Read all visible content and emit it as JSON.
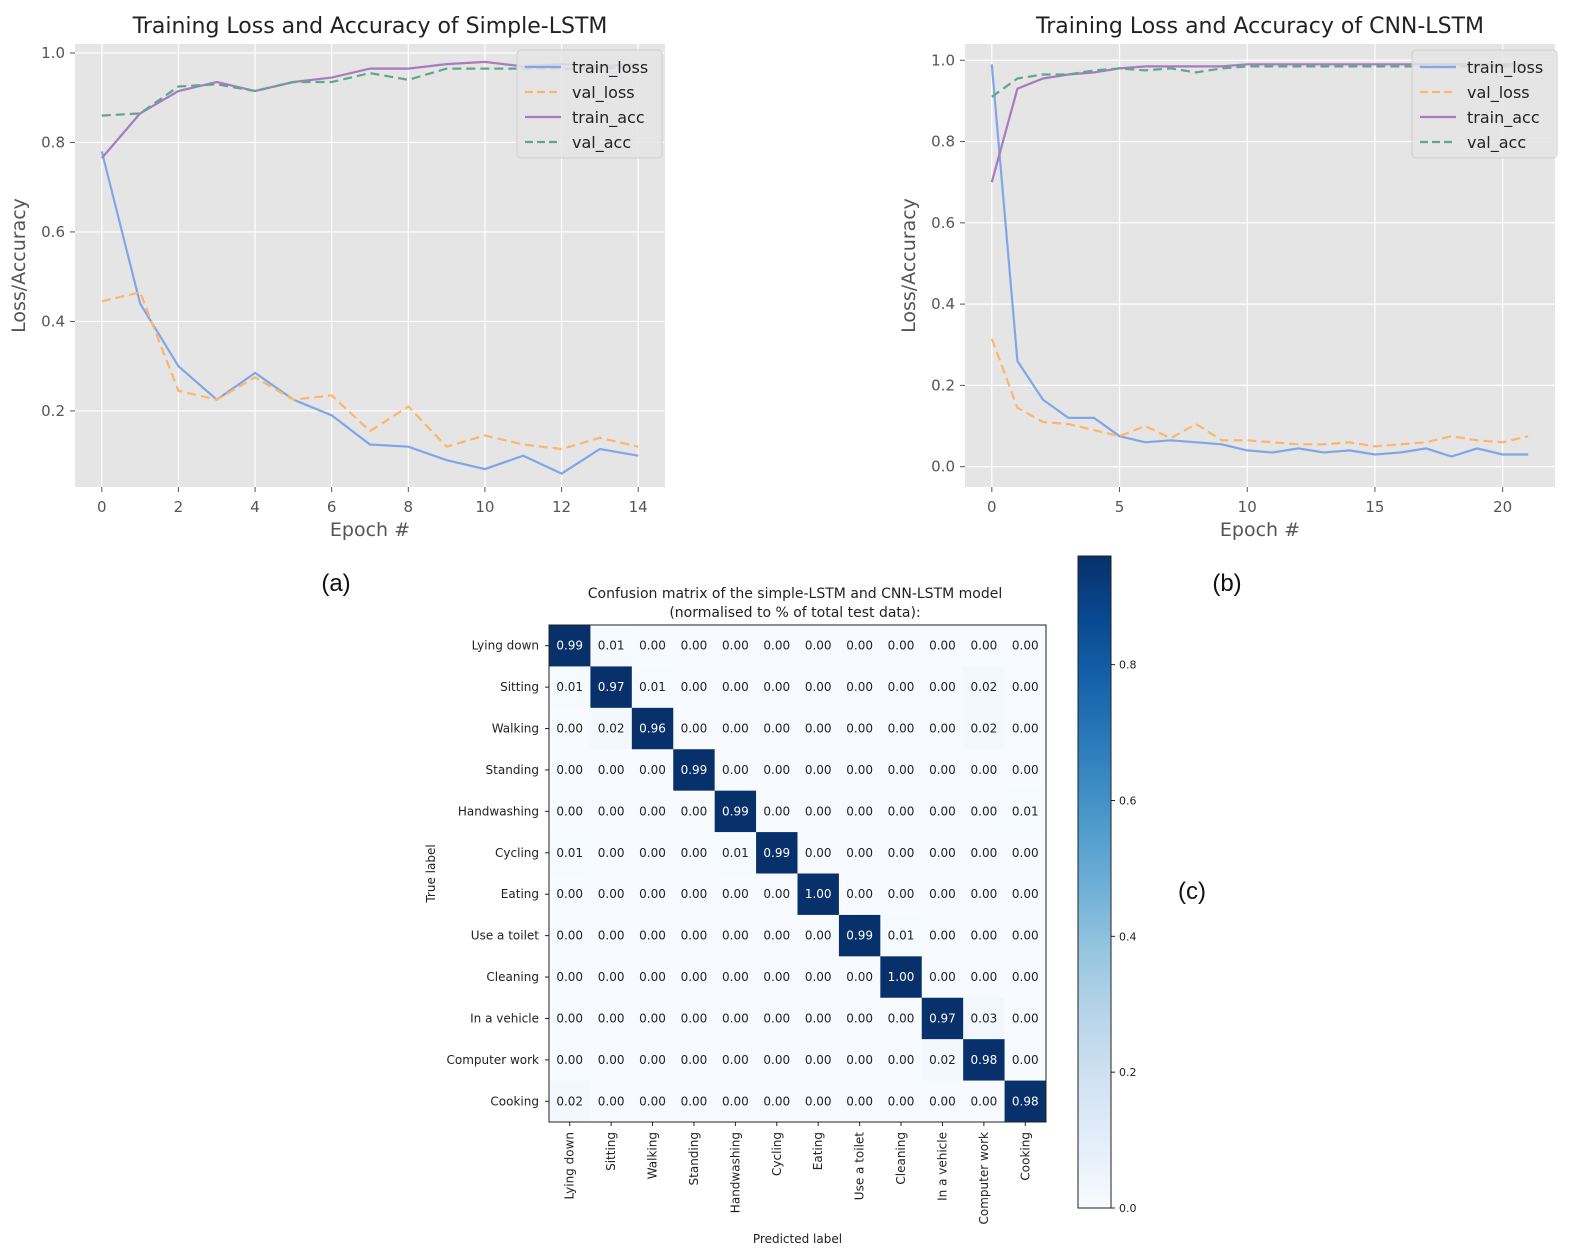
{
  "chart_data": [
    {
      "type": "line",
      "title": "Training Loss and Accuracy of Simple-LSTM",
      "xlabel": "Epoch #",
      "ylabel": "Loss/Accuracy",
      "panel_label": "(a)",
      "xlim": [
        -0.7,
        14.7
      ],
      "ylim": [
        0.03,
        1.02
      ],
      "xticks": [
        0,
        2,
        4,
        6,
        8,
        10,
        12,
        14
      ],
      "yticks": [
        0.2,
        0.4,
        0.6,
        0.8,
        1.0
      ],
      "ytick_labels": [
        "0.2",
        "0.4",
        "0.6",
        "0.8",
        "1.0"
      ],
      "legend_position": "top-right",
      "x": [
        0,
        1,
        2,
        3,
        4,
        5,
        6,
        7,
        8,
        9,
        10,
        11,
        12,
        13,
        14
      ],
      "series": [
        {
          "name": "train_loss",
          "style": "solid",
          "color": "#7fa6e8",
          "values": [
            0.78,
            0.44,
            0.3,
            0.225,
            0.285,
            0.225,
            0.19,
            0.125,
            0.12,
            0.09,
            0.07,
            0.1,
            0.06,
            0.115,
            0.1
          ]
        },
        {
          "name": "val_loss",
          "style": "dashed",
          "color": "#fdb56b",
          "values": [
            0.445,
            0.465,
            0.245,
            0.225,
            0.275,
            0.225,
            0.235,
            0.155,
            0.21,
            0.12,
            0.145,
            0.125,
            0.115,
            0.14,
            0.12
          ]
        },
        {
          "name": "train_acc",
          "style": "solid",
          "color": "#a77bbf",
          "values": [
            0.765,
            0.865,
            0.915,
            0.935,
            0.915,
            0.935,
            0.945,
            0.965,
            0.965,
            0.975,
            0.98,
            0.97,
            0.975,
            0.97,
            0.975
          ]
        },
        {
          "name": "val_acc",
          "style": "dashed",
          "color": "#5fa68c",
          "values": [
            0.86,
            0.865,
            0.925,
            0.93,
            0.915,
            0.935,
            0.935,
            0.955,
            0.94,
            0.965,
            0.965,
            0.965,
            0.965,
            0.965,
            0.97
          ]
        }
      ]
    },
    {
      "type": "line",
      "title": "Training Loss and Accuracy of CNN-LSTM",
      "xlabel": "Epoch #",
      "ylabel": "Loss/Accuracy",
      "panel_label": "(b)",
      "xlim": [
        -1.05,
        22.05
      ],
      "ylim": [
        -0.05,
        1.04
      ],
      "xticks": [
        0,
        5,
        10,
        15,
        20
      ],
      "yticks": [
        0.0,
        0.2,
        0.4,
        0.6,
        0.8,
        1.0
      ],
      "ytick_labels": [
        "0.0",
        "0.2",
        "0.4",
        "0.6",
        "0.8",
        "1.0"
      ],
      "legend_position": "top-right",
      "x": [
        0,
        1,
        2,
        3,
        4,
        5,
        6,
        7,
        8,
        9,
        10,
        11,
        12,
        13,
        14,
        15,
        16,
        17,
        18,
        19,
        20,
        21
      ],
      "series": [
        {
          "name": "train_loss",
          "style": "solid",
          "color": "#7fa6e8",
          "values": [
            0.99,
            0.26,
            0.165,
            0.12,
            0.12,
            0.075,
            0.06,
            0.065,
            0.06,
            0.055,
            0.04,
            0.035,
            0.045,
            0.035,
            0.04,
            0.03,
            0.035,
            0.045,
            0.025,
            0.045,
            0.03,
            0.03
          ]
        },
        {
          "name": "val_loss",
          "style": "dashed",
          "color": "#fdb56b",
          "values": [
            0.315,
            0.145,
            0.11,
            0.105,
            0.09,
            0.075,
            0.1,
            0.07,
            0.105,
            0.065,
            0.065,
            0.06,
            0.055,
            0.055,
            0.06,
            0.05,
            0.055,
            0.06,
            0.075,
            0.065,
            0.06,
            0.075
          ]
        },
        {
          "name": "train_acc",
          "style": "solid",
          "color": "#a77bbf",
          "values": [
            0.7,
            0.93,
            0.955,
            0.965,
            0.97,
            0.98,
            0.985,
            0.985,
            0.985,
            0.985,
            0.99,
            0.99,
            0.99,
            0.99,
            0.99,
            0.99,
            0.99,
            0.99,
            0.99,
            0.99,
            0.99,
            0.99
          ]
        },
        {
          "name": "val_acc",
          "style": "dashed",
          "color": "#5fa68c",
          "values": [
            0.91,
            0.955,
            0.965,
            0.965,
            0.975,
            0.98,
            0.975,
            0.98,
            0.97,
            0.98,
            0.985,
            0.985,
            0.985,
            0.985,
            0.985,
            0.985,
            0.985,
            0.985,
            0.985,
            0.985,
            0.985,
            0.985
          ]
        }
      ]
    },
    {
      "type": "heatmap",
      "title": "Confusion matrix of the simple-LSTM and CNN-LSTM model",
      "subtitle": "(normalised to % of total test data):",
      "xlabel": "Predicted label",
      "ylabel": "True label",
      "panel_label": "(c)",
      "labels": [
        "Lying down",
        "Sitting",
        "Walking",
        "Standing",
        "Handwashing",
        "Cycling",
        "Eating",
        "Use a toilet",
        "Cleaning",
        "In a vehicle",
        "Computer work",
        "Cooking"
      ],
      "matrix": [
        [
          "0.99",
          "0.01",
          "0.00",
          "0.00",
          "0.00",
          "0.00",
          "0.00",
          "0.00",
          "0.00",
          "0.00",
          "0.00",
          "0.00"
        ],
        [
          "0.01",
          "0.97",
          "0.01",
          "0.00",
          "0.00",
          "0.00",
          "0.00",
          "0.00",
          "0.00",
          "0.00",
          "0.02",
          "0.00"
        ],
        [
          "0.00",
          "0.02",
          "0.96",
          "0.00",
          "0.00",
          "0.00",
          "0.00",
          "0.00",
          "0.00",
          "0.00",
          "0.02",
          "0.00"
        ],
        [
          "0.00",
          "0.00",
          "0.00",
          "0.99",
          "0.00",
          "0.00",
          "0.00",
          "0.00",
          "0.00",
          "0.00",
          "0.00",
          "0.00"
        ],
        [
          "0.00",
          "0.00",
          "0.00",
          "0.00",
          "0.99",
          "0.00",
          "0.00",
          "0.00",
          "0.00",
          "0.00",
          "0.00",
          "0.01"
        ],
        [
          "0.01",
          "0.00",
          "0.00",
          "0.00",
          "0.01",
          "0.99",
          "0.00",
          "0.00",
          "0.00",
          "0.00",
          "0.00",
          "0.00"
        ],
        [
          "0.00",
          "0.00",
          "0.00",
          "0.00",
          "0.00",
          "0.00",
          "1.00",
          "0.00",
          "0.00",
          "0.00",
          "0.00",
          "0.00"
        ],
        [
          "0.00",
          "0.00",
          "0.00",
          "0.00",
          "0.00",
          "0.00",
          "0.00",
          "0.99",
          "0.01",
          "0.00",
          "0.00",
          "0.00"
        ],
        [
          "0.00",
          "0.00",
          "0.00",
          "0.00",
          "0.00",
          "0.00",
          "0.00",
          "0.00",
          "1.00",
          "0.00",
          "0.00",
          "0.00"
        ],
        [
          "0.00",
          "0.00",
          "0.00",
          "0.00",
          "0.00",
          "0.00",
          "0.00",
          "0.00",
          "0.00",
          "0.97",
          "0.03",
          "0.00"
        ],
        [
          "0.00",
          "0.00",
          "0.00",
          "0.00",
          "0.00",
          "0.00",
          "0.00",
          "0.00",
          "0.00",
          "0.02",
          "0.98",
          "0.00"
        ],
        [
          "0.02",
          "0.00",
          "0.00",
          "0.00",
          "0.00",
          "0.00",
          "0.00",
          "0.00",
          "0.00",
          "0.00",
          "0.00",
          "0.98"
        ]
      ],
      "colorbar_range": [
        0,
        0.96
      ],
      "colorbar_ticks": [
        "0.0",
        "0.2",
        "0.4",
        "0.6",
        "0.8"
      ],
      "colorbar_tick_values": [
        0.0,
        0.2,
        0.4,
        0.6,
        0.8
      ]
    }
  ]
}
